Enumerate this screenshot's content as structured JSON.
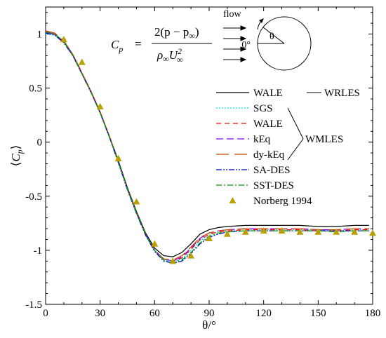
{
  "chart_data": {
    "type": "line",
    "xlabel": "θ/°",
    "ylabel": "⟨C_p⟩",
    "xlim": [
      0,
      180
    ],
    "ylim": [
      -1.5,
      1.25
    ],
    "xticks": [
      0,
      30,
      60,
      90,
      120,
      150,
      180
    ],
    "yticks": [
      -1.5,
      -1,
      -0.5,
      0,
      0.5,
      1
    ],
    "x_tick_labels": [
      "0",
      "30",
      "60",
      "90",
      "120",
      "150",
      "180"
    ],
    "y_tick_labels": [
      "-1.5",
      "-1",
      "-0.5",
      "0",
      "0.5",
      "1"
    ],
    "grid": false,
    "legend_position": "right",
    "series": [
      {
        "name": "WALE",
        "group": "WRLES",
        "color": "#000000",
        "dash": "solid",
        "x": [
          0,
          5,
          10,
          15,
          20,
          25,
          30,
          35,
          40,
          45,
          50,
          55,
          60,
          65,
          70,
          75,
          80,
          85,
          90,
          95,
          100,
          110,
          120,
          130,
          140,
          150,
          160,
          170,
          178
        ],
        "y": [
          1.02,
          1.0,
          0.93,
          0.81,
          0.64,
          0.47,
          0.28,
          0.06,
          -0.17,
          -0.42,
          -0.64,
          -0.84,
          -0.98,
          -1.05,
          -1.06,
          -1.02,
          -0.94,
          -0.85,
          -0.81,
          -0.79,
          -0.78,
          -0.77,
          -0.77,
          -0.77,
          -0.77,
          -0.78,
          -0.78,
          -0.77,
          -0.77
        ]
      },
      {
        "name": "SGS",
        "group": "WMLES",
        "color": "#00e5e5",
        "dash": "dot",
        "x": [
          0,
          5,
          10,
          15,
          20,
          25,
          30,
          35,
          40,
          45,
          50,
          55,
          60,
          65,
          70,
          75,
          80,
          85,
          90,
          95,
          100,
          110,
          120,
          130,
          140,
          150,
          160,
          170,
          178
        ],
        "y": [
          1.0,
          0.99,
          0.92,
          0.8,
          0.63,
          0.46,
          0.27,
          0.05,
          -0.19,
          -0.44,
          -0.66,
          -0.86,
          -1.01,
          -1.09,
          -1.11,
          -1.08,
          -1.0,
          -0.91,
          -0.86,
          -0.83,
          -0.82,
          -0.81,
          -0.81,
          -0.81,
          -0.81,
          -0.81,
          -0.82,
          -0.81,
          -0.81
        ]
      },
      {
        "name": "WALE",
        "group": "WMLES",
        "color": "#ff0000",
        "dash": "dash",
        "x": [
          0,
          5,
          10,
          15,
          20,
          25,
          30,
          35,
          40,
          45,
          50,
          55,
          60,
          65,
          70,
          75,
          80,
          85,
          90,
          95,
          100,
          110,
          120,
          130,
          140,
          150,
          160,
          170,
          178
        ],
        "y": [
          1.03,
          1.0,
          0.93,
          0.81,
          0.64,
          0.47,
          0.28,
          0.06,
          -0.18,
          -0.43,
          -0.65,
          -0.85,
          -1.0,
          -1.08,
          -1.1,
          -1.07,
          -0.99,
          -0.9,
          -0.85,
          -0.83,
          -0.82,
          -0.81,
          -0.81,
          -0.81,
          -0.81,
          -0.82,
          -0.82,
          -0.81,
          -0.81
        ]
      },
      {
        "name": "kEq",
        "group": "WMLES",
        "color": "#7f00ff",
        "dash": "longdash",
        "x": [
          0,
          5,
          10,
          15,
          20,
          25,
          30,
          35,
          40,
          45,
          50,
          55,
          60,
          65,
          70,
          75,
          80,
          85,
          90,
          95,
          100,
          110,
          120,
          130,
          140,
          150,
          160,
          170,
          178
        ],
        "y": [
          1.02,
          1.0,
          0.93,
          0.8,
          0.63,
          0.46,
          0.27,
          0.05,
          -0.18,
          -0.43,
          -0.65,
          -0.85,
          -1.0,
          -1.08,
          -1.1,
          -1.06,
          -0.98,
          -0.89,
          -0.84,
          -0.82,
          -0.81,
          -0.8,
          -0.8,
          -0.8,
          -0.8,
          -0.81,
          -0.81,
          -0.8,
          -0.8
        ]
      },
      {
        "name": "dy-kEq",
        "group": "WMLES",
        "color": "#c84800",
        "dash": "verylongdash",
        "x": [
          0,
          5,
          10,
          15,
          20,
          25,
          30,
          35,
          40,
          45,
          50,
          55,
          60,
          65,
          70,
          75,
          80,
          85,
          90,
          95,
          100,
          110,
          120,
          130,
          140,
          150,
          160,
          170,
          178
        ],
        "y": [
          1.03,
          1.01,
          0.94,
          0.81,
          0.64,
          0.47,
          0.28,
          0.06,
          -0.18,
          -0.43,
          -0.65,
          -0.85,
          -1.0,
          -1.08,
          -1.09,
          -1.05,
          -0.97,
          -0.88,
          -0.84,
          -0.82,
          -0.81,
          -0.8,
          -0.8,
          -0.8,
          -0.8,
          -0.81,
          -0.81,
          -0.8,
          -0.8
        ]
      },
      {
        "name": "SA-DES",
        "group": "WMLES",
        "color": "#0000c8",
        "dash": "dashdotdot",
        "x": [
          0,
          5,
          10,
          15,
          20,
          25,
          30,
          35,
          40,
          45,
          50,
          55,
          60,
          65,
          70,
          75,
          80,
          85,
          90,
          95,
          100,
          110,
          120,
          130,
          140,
          150,
          160,
          170,
          178
        ],
        "y": [
          1.01,
          0.99,
          0.92,
          0.8,
          0.63,
          0.46,
          0.27,
          0.05,
          -0.19,
          -0.44,
          -0.66,
          -0.86,
          -1.01,
          -1.1,
          -1.12,
          -1.1,
          -1.03,
          -0.94,
          -0.88,
          -0.85,
          -0.83,
          -0.82,
          -0.82,
          -0.82,
          -0.82,
          -0.82,
          -0.82,
          -0.82,
          -0.82
        ]
      },
      {
        "name": "SST-DES",
        "group": "WMLES",
        "color": "#00a000",
        "dash": "dashdot",
        "x": [
          0,
          5,
          10,
          15,
          20,
          25,
          30,
          35,
          40,
          45,
          50,
          55,
          60,
          65,
          70,
          75,
          80,
          85,
          90,
          95,
          100,
          110,
          120,
          130,
          140,
          150,
          160,
          170,
          178
        ],
        "y": [
          1.02,
          1.0,
          0.93,
          0.8,
          0.63,
          0.46,
          0.27,
          0.05,
          -0.18,
          -0.43,
          -0.65,
          -0.85,
          -1.0,
          -1.09,
          -1.11,
          -1.09,
          -1.02,
          -0.93,
          -0.87,
          -0.84,
          -0.83,
          -0.82,
          -0.82,
          -0.82,
          -0.82,
          -0.82,
          -0.83,
          -0.82,
          -0.82
        ]
      },
      {
        "name": "Norberg 1994",
        "group": "",
        "color": "#b8a000",
        "marker": "triangle",
        "x": [
          10,
          20,
          30,
          40,
          50,
          60,
          70,
          80,
          90,
          100,
          110,
          120,
          130,
          140,
          150,
          160,
          170,
          180
        ],
        "y": [
          0.95,
          0.74,
          0.33,
          -0.15,
          -0.55,
          -0.94,
          -1.1,
          -1.05,
          -0.89,
          -0.85,
          -0.83,
          -0.82,
          -0.82,
          -0.83,
          -0.83,
          -0.83,
          -0.83,
          -0.84
        ]
      }
    ],
    "legend_groups": [
      {
        "label": "WRLES",
        "members": [
          "WALE"
        ]
      },
      {
        "label": "WMLES",
        "members": [
          "SGS",
          "WALE",
          "kEq",
          "dy-kEq"
        ]
      }
    ],
    "annotations": {
      "formula_lhs": "C",
      "formula_lhs_sub": "p",
      "formula_eq": "=",
      "formula_num": "2(p − p",
      "formula_num_sub": "∞",
      "formula_num_close": ")",
      "formula_den": "ρ",
      "formula_den_sub1": "∞",
      "formula_den_u": "U",
      "formula_den_sup": "2",
      "formula_den_sub2": "∞",
      "flow_label": "flow",
      "zero_label": "0°",
      "theta_label": "θ"
    }
  }
}
